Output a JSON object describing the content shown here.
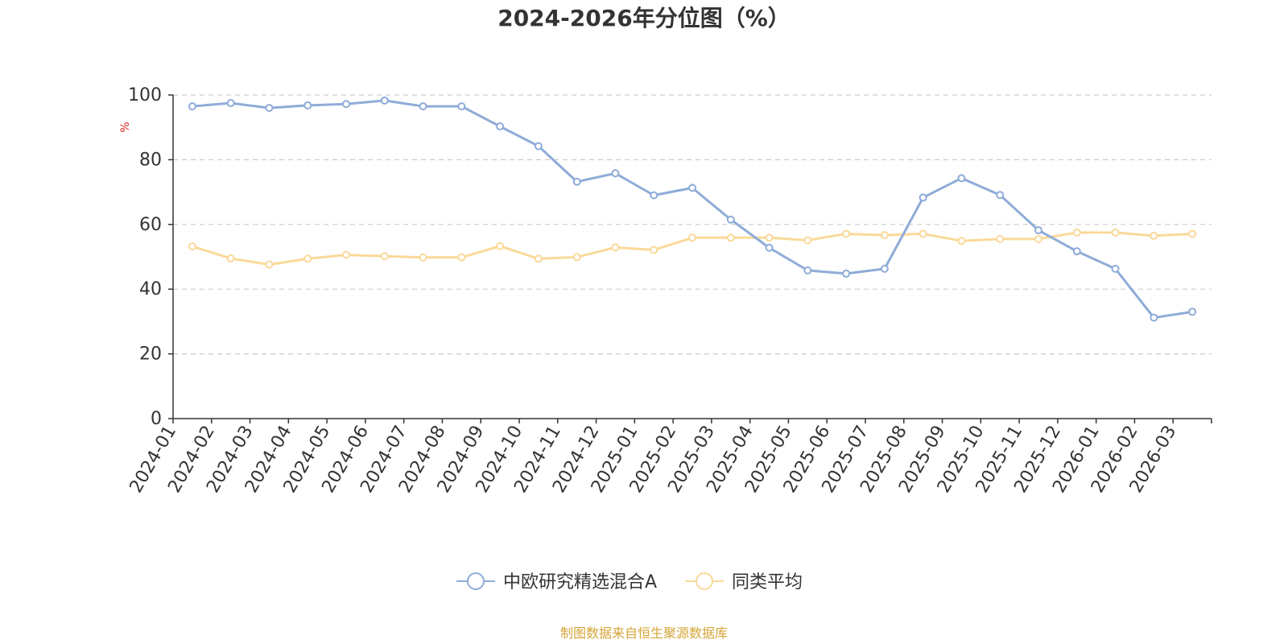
{
  "chart_data": {
    "type": "line",
    "title": "2024-2026年分位图（%）",
    "ylabel": "%",
    "ylim": [
      0,
      100
    ],
    "yticks": [
      0,
      20,
      40,
      60,
      80,
      100
    ],
    "grid": true,
    "legend_position": "bottom",
    "categories": [
      "2024-01",
      "2024-02",
      "2024-03",
      "2024-04",
      "2024-05",
      "2024-06",
      "2024-07",
      "2024-08",
      "2024-09",
      "2024-10",
      "2024-11",
      "2024-12",
      "2025-01",
      "2025-02",
      "2025-03",
      "2025-04",
      "2025-05",
      "2025-06",
      "2025-07",
      "2025-08",
      "2025-09",
      "2025-10",
      "2025-11",
      "2025-12",
      "2026-01",
      "2026-02",
      "2026-03"
    ],
    "series": [
      {
        "name": "中欧研究精选混合A",
        "color": "#8eacd8",
        "values": [
          96.5,
          97.5,
          96,
          96.8,
          97.2,
          98.3,
          96.5,
          96.5,
          90.3,
          84.2,
          73.2,
          75.8,
          69,
          71.3,
          61.5,
          52.8,
          45.8,
          44.8,
          46.3,
          68.3,
          74.3,
          69.1,
          58.2,
          51.7,
          46.3,
          31.2,
          33
        ]
      },
      {
        "name": "同类平均",
        "color": "#fad99a",
        "values": [
          53.2,
          49.5,
          47.6,
          49.4,
          50.6,
          50.2,
          49.8,
          49.8,
          53.3,
          49.4,
          49.9,
          52.9,
          52.1,
          55.9,
          55.9,
          55.9,
          55.1,
          57.1,
          56.7,
          57.1,
          54.9,
          55.5,
          55.5,
          57.5,
          57.5,
          56.5,
          57.1
        ]
      }
    ],
    "source_text": "制图数据来自恒生聚源数据库",
    "source_color": "#d4a537",
    "ylabel_color": "#e02020"
  }
}
